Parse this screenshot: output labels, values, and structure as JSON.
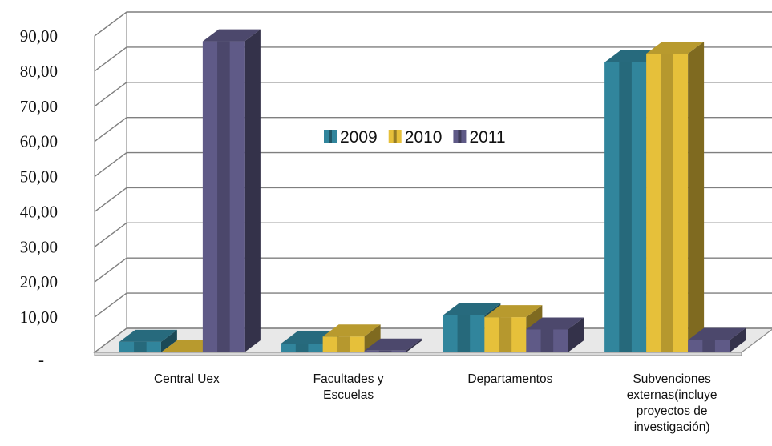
{
  "chart_data": {
    "type": "bar",
    "categories": [
      [
        "Central Uex"
      ],
      [
        "Facultades y",
        "Escuelas"
      ],
      [
        "Departamentos"
      ],
      [
        "Subvenciones",
        "externas(incluye",
        "proyectos de",
        "investigación)"
      ]
    ],
    "series": [
      {
        "name": "2009",
        "values": [
          3.0,
          2.5,
          10.5,
          82.5
        ],
        "color": "#31859c"
      },
      {
        "name": "2010",
        "values": [
          0.0,
          4.5,
          10.0,
          85.0
        ],
        "color": "#e6c03a"
      },
      {
        "name": "2011",
        "values": [
          88.5,
          0.5,
          6.5,
          3.5
        ],
        "color": "#5f5a87"
      }
    ],
    "ylim": [
      0,
      90
    ],
    "yticks": [
      0,
      10,
      20,
      30,
      40,
      50,
      60,
      70,
      80,
      90
    ],
    "ytick_labels": [
      "-",
      "10,00",
      "20,00",
      "30,00",
      "40,00",
      "50,00",
      "60,00",
      "70,00",
      "80,00",
      "90,00"
    ],
    "grid": true,
    "legend_position": "inside-top-center",
    "title": "",
    "xlabel": "",
    "ylabel": ""
  }
}
